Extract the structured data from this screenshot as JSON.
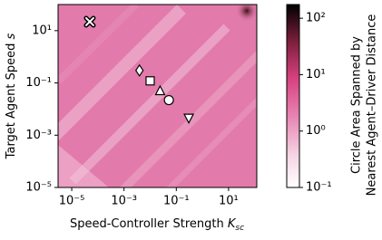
{
  "chart_data": {
    "type": "scatter",
    "xlabel": "Speed-Controller Strength",
    "xlabel_symbol": "K",
    "xlabel_subscript": "sc",
    "ylabel": "Target Agent Speed",
    "ylabel_symbol": "s",
    "colorbar_label": [
      "Circle Area Spanned by",
      "Nearest Agent–Driver Distance"
    ],
    "xscale": "log",
    "yscale": "log",
    "xlim": [
      3e-06,
      120
    ],
    "ylim": [
      1e-05,
      100
    ],
    "xticks": [
      {
        "value": 1e-05,
        "label": "10⁻⁵"
      },
      {
        "value": 0.001,
        "label": "10⁻³"
      },
      {
        "value": 0.1,
        "label": "10⁻¹"
      },
      {
        "value": 10,
        "label": "10¹"
      }
    ],
    "yticks": [
      {
        "value": 1e-05,
        "label": "10⁻⁵"
      },
      {
        "value": 0.001,
        "label": "10⁻³"
      },
      {
        "value": 0.1,
        "label": "10⁻¹"
      },
      {
        "value": 10,
        "label": "10¹"
      }
    ],
    "clim": [
      0.1,
      175
    ],
    "cscale": "log",
    "cticks": [
      {
        "value": 0.1,
        "label": "10⁻¹"
      },
      {
        "value": 1,
        "label": "10⁰"
      },
      {
        "value": 10,
        "label": "10¹"
      },
      {
        "value": 100,
        "label": "10²"
      }
    ],
    "x": [
      4.9e-05,
      0.0039,
      0.01,
      0.024,
      0.052,
      0.3
    ],
    "y": [
      22,
      0.3,
      0.12,
      0.049,
      0.022,
      0.0046
    ],
    "markers": [
      "x",
      "diamond",
      "square",
      "triangle-up",
      "circle",
      "triangle-down"
    ],
    "marker_fill": "#ffffff",
    "marker_edge": "#000000"
  }
}
